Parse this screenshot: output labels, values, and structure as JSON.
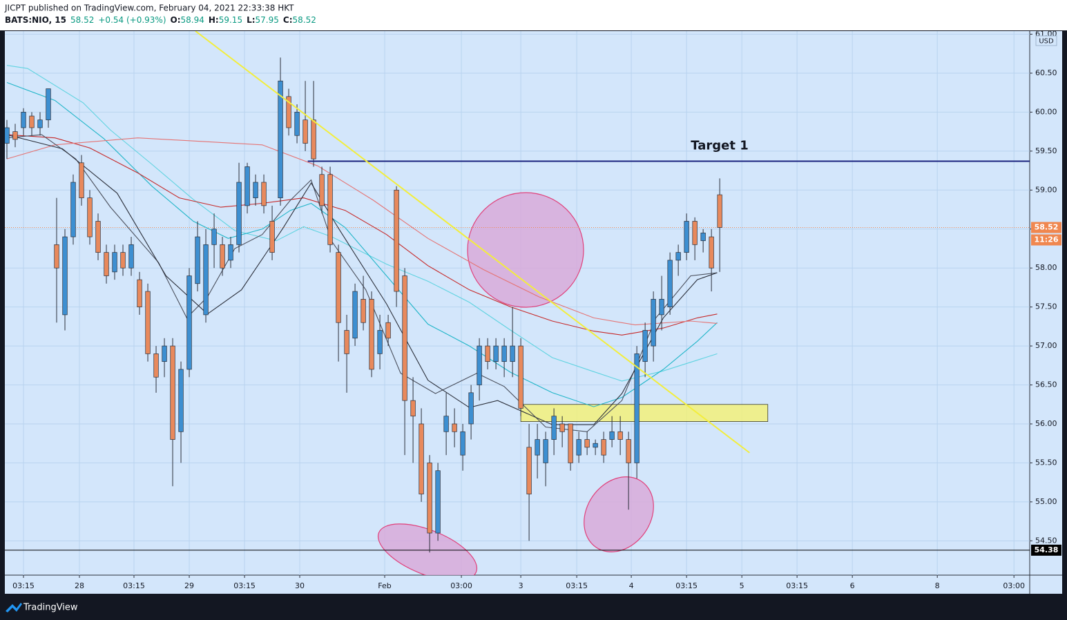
{
  "chart_data": {
    "type": "candlestick",
    "title": "JICPT published on TradingView.com, February 04, 2021 22:33:38 HKT",
    "symbol": "BATS:NIO, 15",
    "last": 58.52,
    "change": "+0.54 (+0.93%)",
    "open_label": "O:",
    "open_value": 58.94,
    "high_label": "H:",
    "high_value": 59.15,
    "low_label": "L:",
    "low_value": 57.95,
    "close_label": "C:",
    "close_value": 58.52,
    "currency": "USD",
    "up_color": "#3d8fd1",
    "down_color": "#e8895c",
    "wick_color": "#2a2e39",
    "grid": true,
    "xlim": [
      -0.25,
      123.4
    ],
    "ylim": [
      54.06,
      61.04
    ],
    "yticks": [
      {
        "value": 54.5,
        "label": "54.50"
      },
      {
        "value": 55,
        "label": "55.00"
      },
      {
        "value": 55.5,
        "label": "55.50"
      },
      {
        "value": 56,
        "label": "56.00"
      },
      {
        "value": 56.5,
        "label": "56.50"
      },
      {
        "value": 57,
        "label": "57.00"
      },
      {
        "value": 57.5,
        "label": "57.50"
      },
      {
        "value": 58,
        "label": "58.00"
      },
      {
        "value": 58.5,
        "label": "58.50"
      },
      {
        "value": 59,
        "label": "59.00"
      },
      {
        "value": 59.5,
        "label": "59.50"
      },
      {
        "value": 60,
        "label": "60.00"
      },
      {
        "value": 60.5,
        "label": "60.50"
      },
      {
        "value": 61,
        "label": "61.00"
      }
    ],
    "xticks": [
      {
        "value": 2,
        "label": "03:15"
      },
      {
        "value": 8.75,
        "label": "28"
      },
      {
        "value": 15.33,
        "label": "03:15"
      },
      {
        "value": 22,
        "label": "29"
      },
      {
        "value": 28.67,
        "label": "03:15"
      },
      {
        "value": 35.33,
        "label": "30"
      },
      {
        "value": 45.58,
        "label": "Feb"
      },
      {
        "value": 54.83,
        "label": "03:00"
      },
      {
        "value": 62,
        "label": "3"
      },
      {
        "value": 68.75,
        "label": "03:15"
      },
      {
        "value": 75.33,
        "label": "4"
      },
      {
        "value": 82,
        "label": "03:15"
      },
      {
        "value": 88.67,
        "label": "5"
      },
      {
        "value": 95.33,
        "label": "03:15"
      },
      {
        "value": 102,
        "label": "6"
      },
      {
        "value": 112.25,
        "label": "8"
      },
      {
        "value": 121.5,
        "label": "03:00"
      }
    ],
    "x": [
      0,
      1,
      2,
      3,
      4,
      5,
      6,
      7,
      8,
      9,
      10,
      11,
      12,
      13,
      14,
      15,
      16,
      17,
      18,
      19,
      20,
      21,
      22,
      23,
      24,
      25,
      26,
      27,
      28,
      29,
      30,
      31,
      32,
      33,
      34,
      35,
      36,
      37,
      38,
      39,
      40,
      41,
      42,
      43,
      44,
      45,
      46,
      47,
      48,
      49,
      50,
      51,
      52,
      53,
      54,
      55,
      56,
      57,
      58,
      59,
      60,
      61,
      62,
      63,
      64,
      65,
      66,
      67,
      68,
      69,
      70,
      71,
      72,
      73,
      74,
      75,
      76,
      77,
      78,
      79,
      80,
      81,
      82,
      83,
      84,
      85,
      86
    ],
    "open": [
      59.6,
      59.75,
      59.8,
      59.95,
      59.8,
      59.9,
      58.3,
      57.4,
      58.4,
      59.35,
      58.9,
      58.6,
      58.2,
      57.95,
      58.2,
      58.0,
      57.85,
      57.7,
      56.9,
      56.8,
      57.0,
      55.9,
      56.7,
      57.8,
      57.4,
      58.3,
      58.3,
      58.1,
      58.3,
      58.8,
      58.9,
      59.1,
      58.6,
      58.9,
      60.2,
      59.7,
      59.9,
      59.9,
      59.2,
      59.2,
      58.2,
      57.2,
      57.1,
      57.6,
      57.6,
      56.9,
      57.3,
      59.0,
      57.9,
      56.3,
      56.0,
      55.5,
      54.6,
      55.9,
      56.0,
      55.6,
      56.0,
      56.5,
      57.0,
      56.8,
      56.8,
      56.8,
      57.0,
      55.7,
      55.6,
      55.5,
      55.8,
      56.0,
      56.0,
      55.6,
      55.8,
      55.7,
      55.8,
      55.8,
      55.9,
      55.8,
      55.5,
      56.8,
      57.0,
      57.4,
      57.5,
      58.1,
      58.2,
      58.6,
      58.35,
      58.4,
      58.94
    ],
    "high": [
      59.9,
      59.85,
      60.05,
      60.0,
      60.0,
      60.3,
      58.9,
      58.5,
      59.2,
      59.45,
      59.0,
      58.7,
      58.3,
      58.3,
      58.3,
      58.4,
      57.95,
      57.8,
      57.0,
      57.1,
      57.1,
      56.8,
      58.0,
      58.6,
      58.5,
      58.7,
      58.4,
      58.4,
      59.35,
      59.35,
      59.2,
      59.2,
      58.8,
      60.7,
      60.3,
      60.1,
      60.4,
      60.4,
      59.3,
      59.3,
      58.3,
      57.4,
      57.8,
      57.9,
      57.7,
      57.4,
      57.4,
      59.05,
      58.0,
      56.6,
      56.2,
      55.6,
      55.5,
      56.4,
      56.2,
      56.0,
      56.5,
      57.1,
      57.1,
      57.1,
      57.1,
      57.5,
      57.1,
      56.0,
      56.0,
      55.9,
      56.2,
      56.1,
      56.0,
      55.9,
      55.9,
      55.8,
      55.9,
      56.1,
      56.1,
      55.9,
      57.0,
      57.3,
      57.7,
      57.9,
      58.2,
      58.3,
      58.7,
      58.65,
      58.5,
      58.5,
      59.15
    ],
    "low": [
      59.4,
      59.55,
      59.7,
      59.7,
      59.7,
      59.8,
      57.3,
      57.2,
      58.3,
      58.8,
      58.3,
      58.1,
      57.8,
      57.85,
      57.9,
      57.9,
      57.4,
      56.8,
      56.4,
      56.6,
      55.2,
      55.5,
      56.6,
      57.7,
      57.3,
      58.0,
      57.9,
      58.0,
      58.2,
      58.7,
      58.8,
      58.7,
      58.1,
      58.8,
      59.7,
      59.6,
      59.5,
      59.3,
      58.7,
      58.2,
      56.8,
      56.4,
      57.0,
      57.2,
      56.6,
      56.7,
      57.0,
      57.5,
      55.6,
      55.5,
      55.0,
      54.35,
      54.5,
      55.6,
      55.7,
      55.4,
      55.8,
      56.3,
      56.7,
      56.7,
      56.6,
      56.6,
      56.1,
      54.5,
      55.3,
      55.2,
      55.6,
      55.7,
      55.4,
      55.5,
      55.6,
      55.6,
      55.5,
      55.7,
      55.6,
      54.9,
      55.3,
      56.6,
      56.8,
      57.2,
      57.4,
      57.9,
      58.1,
      58.1,
      58.2,
      57.7,
      57.95
    ],
    "close": [
      59.8,
      59.65,
      60.0,
      59.8,
      59.9,
      60.3,
      58.0,
      58.4,
      59.1,
      58.9,
      58.4,
      58.2,
      57.9,
      58.2,
      58.0,
      58.3,
      57.5,
      56.9,
      56.6,
      57.0,
      55.8,
      56.7,
      57.9,
      58.4,
      58.3,
      58.5,
      58.0,
      58.3,
      59.1,
      59.3,
      59.1,
      58.8,
      58.2,
      60.4,
      59.8,
      60.0,
      59.6,
      59.4,
      58.8,
      58.3,
      57.3,
      56.9,
      57.7,
      57.3,
      56.7,
      57.2,
      57.1,
      57.7,
      56.3,
      56.1,
      55.1,
      54.6,
      55.4,
      56.1,
      55.9,
      55.9,
      56.4,
      57.0,
      56.8,
      57.0,
      57.0,
      57.0,
      56.2,
      55.1,
      55.8,
      55.8,
      56.1,
      55.9,
      55.5,
      55.8,
      55.7,
      55.75,
      55.6,
      55.9,
      55.8,
      55.5,
      56.9,
      57.2,
      57.6,
      57.6,
      58.1,
      58.2,
      58.6,
      58.3,
      58.45,
      58.0,
      58.52
    ],
    "lines": [
      {
        "color": "#5fd3e0",
        "x": [
          0,
          2.5,
          9.2,
          12.5,
          17.5,
          22.5,
          27.5,
          32.5,
          35.8,
          39.2,
          45.8,
          50.8,
          55.8,
          60.8,
          65.8,
          70.8,
          74.2,
          79.2,
          85.7
        ],
        "values": [
          60.6,
          60.56,
          60.12,
          59.77,
          59.33,
          58.88,
          58.48,
          58.35,
          58.53,
          58.4,
          58.05,
          57.83,
          57.56,
          57.2,
          56.85,
          56.67,
          56.55,
          56.68,
          56.9
        ]
      },
      {
        "color": "#1fb5c8",
        "x": [
          0,
          5.8,
          11.7,
          17.5,
          22.5,
          26.7,
          30.8,
          34.2,
          36.7,
          40.8,
          45.8,
          50.8,
          55.8,
          60.8,
          65.8,
          70.8,
          74.2,
          79.2,
          83.3,
          85.7
        ],
        "values": [
          60.38,
          60.15,
          59.66,
          59.05,
          58.6,
          58.38,
          58.5,
          58.74,
          58.83,
          58.52,
          57.9,
          57.28,
          57.0,
          56.66,
          56.4,
          56.22,
          56.34,
          56.7,
          57.06,
          57.3
        ]
      },
      {
        "color": "#c62828",
        "x": [
          0,
          5.8,
          10,
          15.8,
          20.8,
          25.8,
          30.8,
          35.8,
          40.8,
          45.8,
          50.8,
          55.8,
          60.8,
          65.8,
          70.8,
          74.2,
          79.2,
          83.3,
          85.7
        ],
        "values": [
          59.71,
          59.67,
          59.54,
          59.22,
          58.9,
          58.78,
          58.83,
          58.9,
          58.74,
          58.43,
          58.03,
          57.72,
          57.5,
          57.32,
          57.19,
          57.14,
          57.23,
          57.36,
          57.41
        ]
      },
      {
        "color": "#e57373",
        "x": [
          0,
          5.8,
          15.8,
          24.2,
          30.8,
          37.5,
          44.2,
          50.8,
          57.5,
          64.2,
          70.8,
          75.8,
          82.5,
          85.7
        ],
        "values": [
          59.4,
          59.58,
          59.67,
          59.62,
          59.58,
          59.31,
          58.87,
          58.38,
          57.98,
          57.63,
          57.36,
          57.27,
          57.32,
          57.29
        ]
      },
      {
        "color": "#4a4f5c",
        "x": [
          0,
          4.2,
          8.3,
          12.5,
          18.3,
          21.7,
          24.2,
          27.5,
          30.8,
          34.2,
          36.7,
          39.2,
          43.3,
          47.5,
          51.7,
          56.7,
          60,
          65,
          70,
          74.2,
          78.3,
          82.5,
          85.7
        ],
        "values": [
          59.67,
          59.71,
          59.4,
          58.78,
          58.07,
          57.36,
          57.63,
          58.25,
          58.43,
          58.87,
          59.13,
          58.34,
          57.72,
          56.65,
          56.39,
          56.65,
          56.48,
          55.96,
          55.9,
          56.3,
          57.36,
          57.9,
          57.94
        ]
      },
      {
        "color": "#2b2f3a",
        "x": [
          0,
          6.7,
          13.3,
          19.2,
          24.2,
          28.3,
          33.3,
          36.7,
          40,
          45.8,
          50.8,
          55.8,
          59.2,
          65.8,
          70.8,
          74.2,
          79.2,
          83.3,
          85.7
        ],
        "values": [
          59.71,
          59.53,
          58.96,
          57.9,
          57.41,
          57.72,
          58.51,
          59.09,
          58.51,
          57.54,
          56.56,
          56.21,
          56.3,
          55.99,
          55.99,
          56.39,
          57.36,
          57.85,
          57.94
        ]
      }
    ],
    "trendline": {
      "color": "#f3ee3c",
      "x": [
        22.75,
        89.6
      ],
      "y": [
        61.04,
        55.63
      ]
    },
    "zone": {
      "color": "#f2f07a",
      "x": [
        62,
        91.8
      ],
      "y": [
        56.03,
        56.25
      ]
    },
    "target": {
      "label": "Target 1",
      "value": 59.37,
      "x_start": 36.3,
      "color": "#1a237e"
    },
    "support": {
      "value": 54.38,
      "color": "#000000"
    },
    "last_price": {
      "value": 58.52,
      "countdown": "11:26",
      "color": "#f0874f"
    }
  },
  "footer": {
    "brand": "TradingView"
  }
}
